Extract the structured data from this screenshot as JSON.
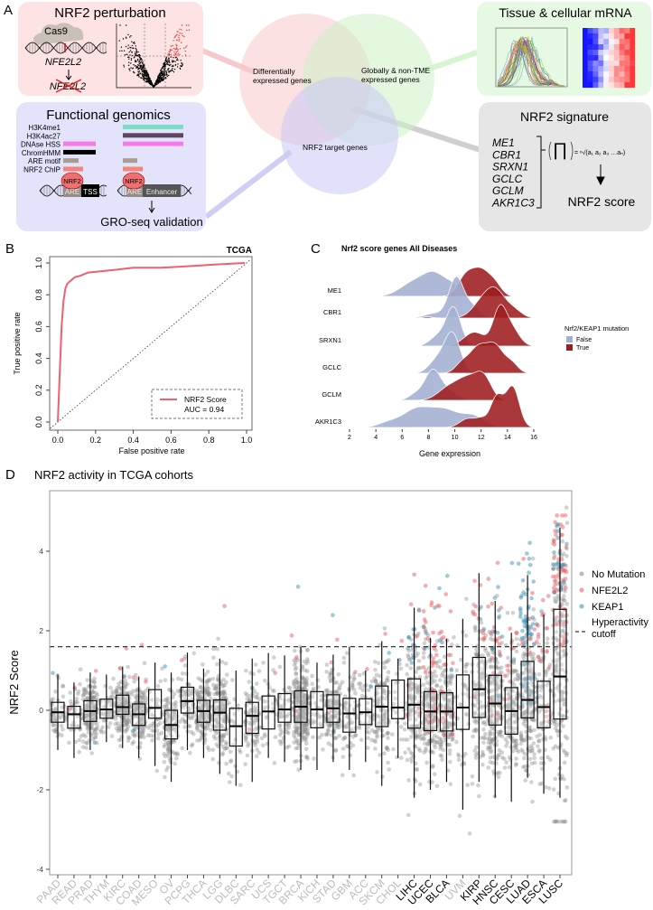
{
  "panel_labels": {
    "a": "A",
    "b": "B",
    "c": "C",
    "d": "D"
  },
  "panel_a": {
    "perturbation": {
      "title": "NRF2 perturbation",
      "cas9": "Cas9",
      "gene": "NFE2L2",
      "gene_knocked": "NFE2L2"
    },
    "functional_genomics": {
      "title": "Functional genomics",
      "tracks": [
        {
          "label": "H3K4me1",
          "color": "#7fdcc6",
          "tss": false,
          "enhancer": true
        },
        {
          "label": "H3K4ac27",
          "color": "#5e4462",
          "tss": false,
          "enhancer": true
        },
        {
          "label": "DNAse HSS",
          "color": "#f77ae8",
          "tss": true,
          "enhancer": true
        },
        {
          "label": "ChromHMM",
          "color": "#000000",
          "tss": true,
          "enhancer": false
        },
        {
          "label": "ARE motif",
          "color": "#a99b8e",
          "tss": true,
          "enhancer": true
        },
        {
          "label": "NRF2 ChIP",
          "color": "#f5857b",
          "tss": true,
          "enhancer": true
        }
      ],
      "nrf2": "NRF2",
      "are": "ARE",
      "tss": "TSS",
      "enhancer": "Enhancer",
      "validation": "GRO-seq validation"
    },
    "venn": {
      "deg": "Differentially expressed genes",
      "deg_lines": [
        "Differentially",
        "expressed genes"
      ],
      "global_lines": [
        "Globally & non-TME",
        "expressed genes"
      ],
      "target": "NRF2 target genes",
      "colors": {
        "pink": "#f9c9cb",
        "green": "#cdf3c6",
        "blue": "#c9c9f5"
      }
    },
    "mrna": {
      "title": "Tissue & cellular mRNA"
    },
    "signature": {
      "title": "NRF2 signature",
      "genes": [
        "ME1",
        "CBR1",
        "SRXN1",
        "GCLC",
        "GCLM",
        "AKR1C3"
      ],
      "formula": "= ⁿ√(a₁ a₂ a₃ …aₙ)",
      "product": "∏",
      "output": "NRF2 score"
    }
  },
  "chart_data": [
    {
      "id": "B",
      "type": "line",
      "title": "TCGA",
      "xlabel": "False positive rate",
      "ylabel": "True positive rate",
      "xlim": [
        0,
        1
      ],
      "ylim": [
        0,
        1
      ],
      "xticks": [
        "0.0",
        "0.2",
        "0.4",
        "0.6",
        "0.8",
        "1.0"
      ],
      "yticks": [
        "0.0",
        "0.2",
        "0.4",
        "0.6",
        "0.8",
        "1.0"
      ],
      "series": [
        {
          "name": "NRF2 Score",
          "color": "#f0606a",
          "x": [
            0,
            0.01,
            0.02,
            0.03,
            0.04,
            0.05,
            0.06,
            0.07,
            0.09,
            0.12,
            0.16,
            0.25,
            0.4,
            0.55,
            0.7,
            0.83,
            0.99
          ],
          "y": [
            0,
            0.3,
            0.6,
            0.76,
            0.84,
            0.87,
            0.88,
            0.89,
            0.91,
            0.92,
            0.94,
            0.95,
            0.97,
            0.97,
            0.98,
            0.99,
            1.0
          ]
        }
      ],
      "diagonal": true,
      "legend": {
        "position": "bottom-right",
        "entry": "NRF2 Score",
        "auc": "AUC = 0.94"
      }
    },
    {
      "id": "C",
      "type": "area",
      "subtype": "ridgeline",
      "title": "Nrf2 score genes All Diseases",
      "xlabel": "Gene expression",
      "xlim": [
        2,
        17.5
      ],
      "xticks": [
        2,
        4,
        6,
        8,
        10,
        12,
        14,
        16
      ],
      "legend": {
        "title": "Nrf2/KEAP1 mutation",
        "position": "right",
        "entries": [
          {
            "label": "False",
            "color": "#a4b1d3"
          },
          {
            "label": "True",
            "color": "#9e1c1f"
          }
        ]
      },
      "rows": [
        {
          "gene": "ME1",
          "false": {
            "range": [
              2.7,
              14
            ],
            "peak": 0.6,
            "components": [
              [
                6.8,
                1.0,
                0.6
              ],
              [
                8.5,
                0.9,
                1.0
              ],
              [
                10,
                0.6,
                0.35
              ]
            ]
          },
          "true": {
            "range": [
              2.7,
              17.5
            ],
            "peak": 0.7,
            "components": [
              [
                10.8,
                0.6,
                0.7
              ],
              [
                12,
                0.7,
                1.0
              ],
              [
                13.1,
                0.5,
                0.35
              ]
            ]
          }
        },
        {
          "gene": "CBR1",
          "false": {
            "range": [
              6.5,
              14
            ],
            "peak": 1.0,
            "components": [
              [
                10.1,
                0.55,
                1.0
              ],
              [
                8.5,
                0.8,
                0.12
              ],
              [
                11.3,
                0.6,
                0.3
              ]
            ]
          },
          "true": {
            "range": [
              6.5,
              17.5
            ],
            "peak": 0.75,
            "components": [
              [
                12.2,
                0.8,
                0.7
              ],
              [
                13.2,
                0.7,
                0.85
              ],
              [
                14.5,
                0.6,
                0.3
              ],
              [
                7.9,
                0.4,
                0.05
              ]
            ]
          }
        },
        {
          "gene": "SRXN1",
          "false": {
            "range": [
              7.5,
              13
            ],
            "peak": 0.95,
            "components": [
              [
                9.9,
                0.55,
                1.0
              ],
              [
                8.7,
                0.6,
                0.25
              ]
            ]
          },
          "true": {
            "range": [
              8,
              16
            ],
            "peak": 1.0,
            "components": [
              [
                11.5,
                0.8,
                0.4
              ],
              [
                13.4,
                0.5,
                1.0
              ],
              [
                14.3,
                0.6,
                0.5
              ]
            ]
          }
        },
        {
          "gene": "GCLC",
          "false": {
            "range": [
              7,
              13
            ],
            "peak": 1.0,
            "components": [
              [
                9.8,
                0.6,
                1.0
              ],
              [
                8.6,
                0.6,
                0.3
              ]
            ]
          },
          "true": {
            "range": [
              8,
              15.6
            ],
            "peak": 0.75,
            "components": [
              [
                11.8,
                0.7,
                0.8
              ],
              [
                13.1,
                0.6,
                0.75
              ],
              [
                10.5,
                0.5,
                0.25
              ],
              [
                14.3,
                0.5,
                0.3
              ]
            ]
          }
        },
        {
          "gene": "GCLM",
          "false": {
            "range": [
              5,
              12
            ],
            "peak": 0.75,
            "components": [
              [
                8.3,
                0.6,
                1.0
              ],
              [
                9.5,
                0.7,
                0.3
              ],
              [
                7,
                0.5,
                0.2
              ]
            ]
          },
          "true": {
            "range": [
              5.5,
              14
            ],
            "peak": 0.7,
            "components": [
              [
                9.5,
                0.8,
                0.4
              ],
              [
                11,
                0.8,
                0.7
              ],
              [
                12.2,
                0.6,
                0.7
              ]
            ]
          }
        },
        {
          "gene": "AKR1C3",
          "false": {
            "range": [
              2.5,
              14
            ],
            "peak": 0.5,
            "components": [
              [
                7,
                1.0,
                0.5
              ],
              [
                9.2,
                1.2,
                0.55
              ],
              [
                11.5,
                0.8,
                0.3
              ],
              [
                5,
                0.8,
                0.15
              ]
            ]
          },
          "true": {
            "range": [
              7,
              17.3
            ],
            "peak": 1.0,
            "components": [
              [
                13.2,
                0.5,
                0.7
              ],
              [
                14.4,
                0.5,
                0.9
              ],
              [
                11,
                0.6,
                0.2
              ],
              [
                12,
                0.4,
                0.15
              ]
            ]
          }
        }
      ]
    },
    {
      "id": "D",
      "type": "box",
      "title": "NRF2 activity in TCGA cohorts",
      "ylabel": "NRF2 Score",
      "ylim": [
        -4.2,
        5.4
      ],
      "yticks": [
        -4,
        -2,
        0,
        2,
        4
      ],
      "cutoff": 1.6,
      "legend": {
        "position": "right",
        "entries": [
          {
            "label": "No Mutation",
            "color": "#8c8c8c"
          },
          {
            "label": "NFE2L2",
            "color": "#f0595e"
          },
          {
            "label": "KEAP1",
            "color": "#3b93b5"
          }
        ],
        "cutoff_label": [
          "Hyperactivity",
          "cutoff"
        ]
      },
      "cohorts": [
        {
          "name": "PAAD",
          "highlight": false,
          "stats": [
            -1.0,
            -0.3,
            -0.05,
            0.2,
            0.9
          ],
          "n": 60,
          "nfe2l2": 0,
          "keap1": 1
        },
        {
          "name": "READ",
          "highlight": false,
          "stats": [
            -1.2,
            -0.45,
            -0.1,
            0.1,
            0.7
          ],
          "n": 45,
          "nfe2l2": 2,
          "keap1": 0
        },
        {
          "name": "PRAD",
          "highlight": false,
          "stats": [
            -1.0,
            -0.28,
            -0.02,
            0.24,
            0.95
          ],
          "n": 150,
          "nfe2l2": 1,
          "keap1": 1
        },
        {
          "name": "THYM",
          "highlight": false,
          "stats": [
            -0.8,
            -0.2,
            0.02,
            0.28,
            0.9
          ],
          "n": 45,
          "nfe2l2": 0,
          "keap1": 0
        },
        {
          "name": "KIRC",
          "highlight": false,
          "stats": [
            -0.95,
            -0.1,
            0.08,
            0.38,
            1.1
          ],
          "n": 160,
          "nfe2l2": 3,
          "keap1": 1
        },
        {
          "name": "COAD",
          "highlight": false,
          "stats": [
            -1.2,
            -0.38,
            -0.1,
            0.16,
            0.85
          ],
          "n": 130,
          "nfe2l2": 3,
          "keap1": 1
        },
        {
          "name": "MESO",
          "highlight": false,
          "stats": [
            -1.4,
            -0.2,
            0.06,
            0.52,
            1.2
          ],
          "n": 40,
          "nfe2l2": 0,
          "keap1": 0
        },
        {
          "name": "OV",
          "highlight": false,
          "stats": [
            -1.8,
            -0.72,
            -0.37,
            0.0,
            0.95
          ],
          "n": 120,
          "nfe2l2": 0,
          "keap1": 1
        },
        {
          "name": "PCPG",
          "highlight": false,
          "stats": [
            -1.0,
            -0.07,
            0.23,
            0.58,
            1.45
          ],
          "n": 80,
          "nfe2l2": 1,
          "keap1": 0
        },
        {
          "name": "THCA",
          "highlight": false,
          "stats": [
            -1.2,
            -0.3,
            -0.02,
            0.25,
            1.05
          ],
          "n": 160,
          "nfe2l2": 0,
          "keap1": 0
        },
        {
          "name": "LGG",
          "highlight": false,
          "stats": [
            -1.6,
            -0.5,
            -0.06,
            0.26,
            1.3
          ],
          "n": 160,
          "nfe2l2": 1,
          "keap1": 0
        },
        {
          "name": "DLBC",
          "highlight": false,
          "stats": [
            -1.9,
            -0.9,
            -0.4,
            0.05,
            1.0
          ],
          "n": 25,
          "nfe2l2": 0,
          "keap1": 0
        },
        {
          "name": "SARC",
          "highlight": false,
          "stats": [
            -1.8,
            -0.58,
            -0.14,
            0.2,
            1.3
          ],
          "n": 90,
          "nfe2l2": 1,
          "keap1": 1
        },
        {
          "name": "UCS",
          "highlight": false,
          "stats": [
            -1.2,
            -0.47,
            -0.03,
            0.36,
            1.44
          ],
          "n": 30,
          "nfe2l2": 1,
          "keap1": 0
        },
        {
          "name": "TGCT",
          "highlight": false,
          "stats": [
            -1.3,
            -0.3,
            0.02,
            0.42,
            1.38
          ],
          "n": 50,
          "nfe2l2": 1,
          "keap1": 0
        },
        {
          "name": "BRCA",
          "highlight": false,
          "stats": [
            -1.5,
            -0.3,
            0.09,
            0.49,
            1.6
          ],
          "n": 260,
          "nfe2l2": 3,
          "keap1": 1
        },
        {
          "name": "KICH",
          "highlight": false,
          "stats": [
            -1.5,
            -0.44,
            0.02,
            0.47,
            1.2
          ],
          "n": 40,
          "nfe2l2": 0,
          "keap1": 0
        },
        {
          "name": "STAD",
          "highlight": false,
          "stats": [
            -1.3,
            -0.3,
            0.05,
            0.39,
            1.4
          ],
          "n": 130,
          "nfe2l2": 3,
          "keap1": 2
        },
        {
          "name": "GBM",
          "highlight": false,
          "stats": [
            -1.5,
            -0.55,
            -0.08,
            0.3,
            1.6
          ],
          "n": 70,
          "nfe2l2": 1,
          "keap1": 0
        },
        {
          "name": "ACC",
          "highlight": false,
          "stats": [
            -1.3,
            -0.36,
            -0.05,
            0.29,
            1.0
          ],
          "n": 40,
          "nfe2l2": 1,
          "keap1": 1
        },
        {
          "name": "SKCM",
          "highlight": false,
          "stats": [
            -1.9,
            -0.41,
            0.09,
            0.61,
            1.74
          ],
          "n": 110,
          "nfe2l2": 1,
          "keap1": 1
        },
        {
          "name": "CHOL",
          "highlight": false,
          "stats": [
            -1.2,
            -0.21,
            0.07,
            0.76,
            1.3
          ],
          "n": 25,
          "nfe2l2": 1,
          "keap1": 1
        },
        {
          "name": "LIHC",
          "highlight": true,
          "stats": [
            -2.2,
            -0.45,
            0.14,
            0.79,
            2.58
          ],
          "n": 140,
          "nfe2l2": 8,
          "keap1": 10
        },
        {
          "name": "UCEC",
          "highlight": true,
          "stats": [
            -2.0,
            -0.51,
            -0.03,
            0.47,
            1.82
          ],
          "n": 170,
          "nfe2l2": 35,
          "keap1": 5
        },
        {
          "name": "BLCA",
          "highlight": true,
          "stats": [
            -1.8,
            -0.52,
            -0.03,
            0.44,
            1.8
          ],
          "n": 150,
          "nfe2l2": 22,
          "keap1": 5
        },
        {
          "name": "UVM",
          "highlight": false,
          "stats": [
            -2.5,
            -0.48,
            0.07,
            0.89,
            2.3
          ],
          "n": 40,
          "nfe2l2": 0,
          "keap1": 0
        },
        {
          "name": "KIRP",
          "highlight": true,
          "stats": [
            -1.8,
            -0.18,
            0.53,
            1.33,
            3.45
          ],
          "n": 120,
          "nfe2l2": 12,
          "keap1": 3
        },
        {
          "name": "HNSC",
          "highlight": true,
          "stats": [
            -2.2,
            -0.37,
            0.17,
            0.88,
            2.75
          ],
          "n": 180,
          "nfe2l2": 22,
          "keap1": 14
        },
        {
          "name": "CESC",
          "highlight": true,
          "stats": [
            -2.3,
            -0.6,
            -0.02,
            0.57,
            1.95
          ],
          "n": 120,
          "nfe2l2": 10,
          "keap1": 4
        },
        {
          "name": "LUAD",
          "highlight": true,
          "stats": [
            -1.7,
            -0.19,
            0.26,
            1.23,
            3.4
          ],
          "n": 170,
          "nfe2l2": 10,
          "keap1": 60
        },
        {
          "name": "ESCA",
          "highlight": true,
          "stats": [
            -2.1,
            -0.44,
            0.08,
            0.73,
            2.4
          ],
          "n": 80,
          "nfe2l2": 18,
          "keap1": 3
        },
        {
          "name": "LUSC",
          "highlight": true,
          "stats": [
            -2.2,
            -0.22,
            0.85,
            2.54,
            4.6
          ],
          "n": 170,
          "nfe2l2": 60,
          "keap1": 25
        }
      ]
    }
  ]
}
